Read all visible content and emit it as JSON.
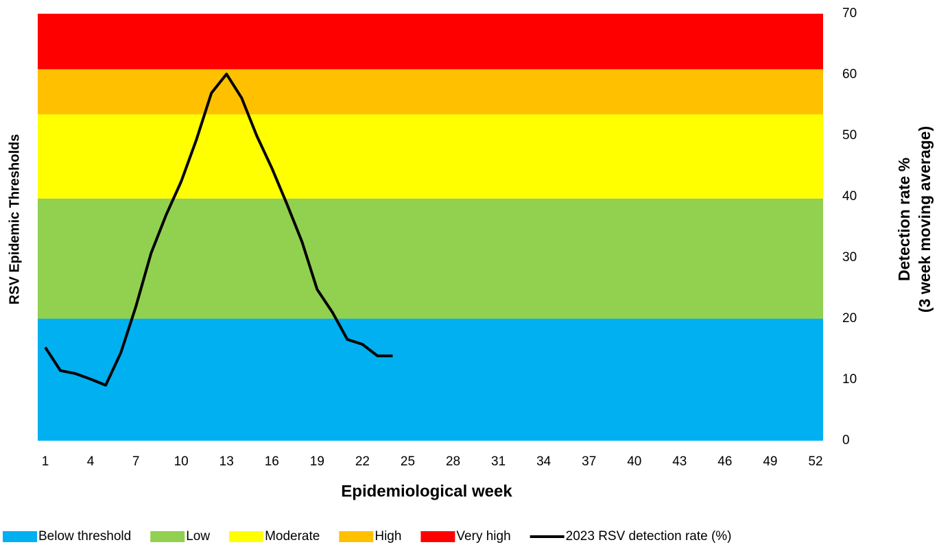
{
  "chart_data": {
    "type": "line",
    "x_label": "Epidemiological week",
    "y_label": "RSV Epidemic Thresholds",
    "y2_label": [
      "Detection rate %",
      "(3 week moving average)"
    ],
    "xlim": [
      0.5,
      52.5
    ],
    "xticks": [
      1,
      4,
      7,
      10,
      13,
      16,
      19,
      22,
      25,
      28,
      31,
      34,
      37,
      40,
      43,
      46,
      49,
      52
    ],
    "y2lim": [
      0,
      70
    ],
    "y2ticks": [
      0,
      10,
      20,
      30,
      40,
      50,
      60,
      70
    ],
    "bands": [
      {
        "name": "Below threshold",
        "color": "#00b0f0",
        "value": 20
      },
      {
        "name": "Low",
        "color": "#92d050",
        "value": 19.7
      },
      {
        "name": "Moderate",
        "color": "#ffff00",
        "value": 13.8
      },
      {
        "name": "High",
        "color": "#ffc000",
        "value": 7.4
      },
      {
        "name": "Very high",
        "color": "#ff0000",
        "value": 9.1
      }
    ],
    "series": [
      {
        "name": "2023 RSV detection rate (%)",
        "color": "#000000",
        "axis": "y2",
        "x": [
          1,
          2,
          3,
          4,
          5,
          6,
          7,
          8,
          9,
          10,
          11,
          12,
          13,
          14,
          15,
          16,
          17,
          18,
          19,
          20,
          21,
          22,
          23,
          24
        ],
        "values": [
          15.3,
          11.5,
          11.0,
          10.1,
          9.1,
          14.4,
          22.0,
          30.7,
          37.0,
          42.5,
          49.3,
          57.0,
          60.1,
          56.2,
          50.0,
          44.7,
          38.8,
          32.6,
          24.8,
          21.1,
          16.6,
          15.8,
          13.9,
          13.9
        ]
      }
    ]
  }
}
